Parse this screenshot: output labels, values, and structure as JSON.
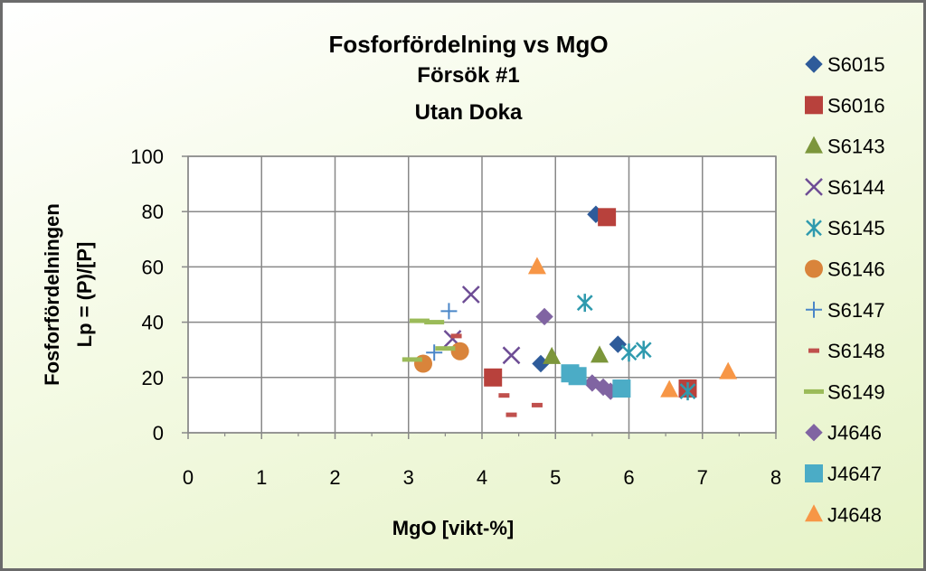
{
  "chart_data": {
    "type": "scatter",
    "title": "Fosforfördelning vs MgO",
    "subtitle_1": "Försök #1",
    "subtitle_2": "Utan Doka",
    "xlabel": "MgO [vikt-%]",
    "ylabel_1": "Fosforfördelningen",
    "ylabel_2": "Lp = (P)/[P]",
    "xlim": [
      0,
      8
    ],
    "ylim": [
      0,
      100
    ],
    "x_ticks": [
      "0",
      "1",
      "2",
      "3",
      "4",
      "5",
      "6",
      "7",
      "8"
    ],
    "y_ticks": [
      "0",
      "20",
      "40",
      "60",
      "80",
      "100"
    ],
    "grid": true,
    "legend_position": "right",
    "series": [
      {
        "name": "S6015",
        "marker": "diamond",
        "color": "#2e5b9a",
        "points": [
          [
            5.55,
            79
          ],
          [
            4.8,
            25
          ],
          [
            5.85,
            32
          ]
        ]
      },
      {
        "name": "S6016",
        "marker": "square",
        "color": "#b8413c",
        "points": [
          [
            5.7,
            78
          ],
          [
            4.15,
            20
          ],
          [
            6.8,
            16
          ]
        ]
      },
      {
        "name": "S6143",
        "marker": "triangle",
        "color": "#7c963b",
        "points": [
          [
            4.95,
            27.5
          ],
          [
            5.6,
            28
          ]
        ]
      },
      {
        "name": "S6144",
        "marker": "x",
        "color": "#6e4d95",
        "points": [
          [
            3.85,
            50
          ],
          [
            3.6,
            34
          ],
          [
            4.4,
            28
          ]
        ]
      },
      {
        "name": "S6145",
        "marker": "asterisk",
        "color": "#2f9aae",
        "points": [
          [
            5.4,
            47
          ],
          [
            6.0,
            29
          ],
          [
            6.2,
            30
          ],
          [
            6.8,
            15
          ]
        ]
      },
      {
        "name": "S6146",
        "marker": "circle",
        "color": "#d9843b",
        "points": [
          [
            3.2,
            25
          ],
          [
            3.7,
            29.5
          ]
        ]
      },
      {
        "name": "S6147",
        "marker": "plus",
        "color": "#4a86c8",
        "points": [
          [
            3.55,
            44
          ],
          [
            3.35,
            29
          ]
        ]
      },
      {
        "name": "S6148",
        "marker": "dash",
        "color": "#c0504d",
        "points": [
          [
            3.65,
            35
          ],
          [
            4.3,
            13.5
          ],
          [
            4.4,
            6.5
          ],
          [
            4.75,
            10
          ]
        ]
      },
      {
        "name": "S6149",
        "marker": "longdash",
        "color": "#9bbb59",
        "points": [
          [
            3.15,
            40.5
          ],
          [
            3.35,
            40
          ],
          [
            3.05,
            26.5
          ],
          [
            3.5,
            30.5
          ]
        ]
      },
      {
        "name": "J4646",
        "marker": "diamond",
        "color": "#8064a2",
        "points": [
          [
            4.85,
            42
          ],
          [
            5.5,
            18
          ],
          [
            5.65,
            16.5
          ],
          [
            5.75,
            15
          ]
        ]
      },
      {
        "name": "J4647",
        "marker": "square",
        "color": "#4bacc6",
        "points": [
          [
            5.2,
            21.5
          ],
          [
            5.3,
            20.5
          ],
          [
            5.9,
            16
          ]
        ]
      },
      {
        "name": "J4648",
        "marker": "triangle",
        "color": "#f79646",
        "points": [
          [
            4.75,
            60
          ],
          [
            6.55,
            15.5
          ],
          [
            7.35,
            22
          ]
        ]
      }
    ]
  }
}
